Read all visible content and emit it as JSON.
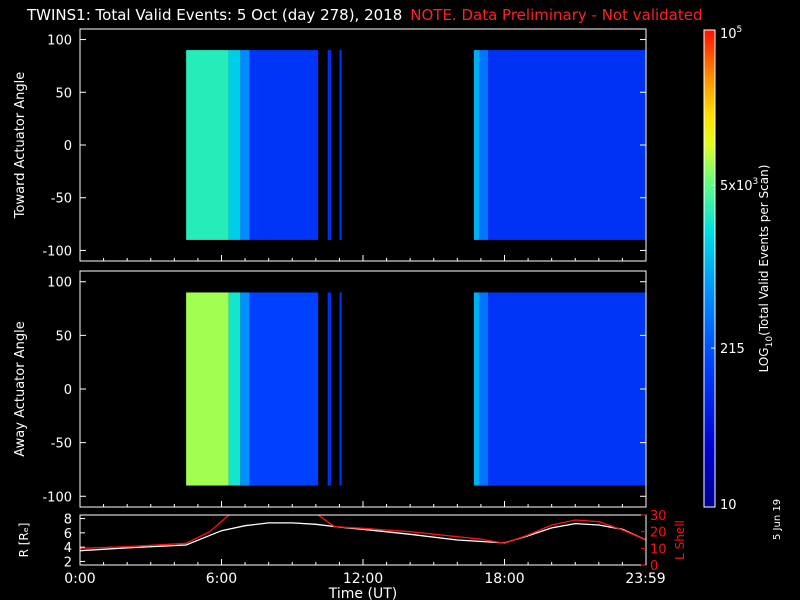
{
  "title": {
    "main": "TWINS1: Total Valid Events:  5 Oct (day 278), 2018",
    "note": "NOTE. Data Preliminary - Not validated",
    "note_color": "#ff2020"
  },
  "date_stamp": "5 Jun 19",
  "chart_data": [
    {
      "type": "heatmap",
      "name": "toward-panel",
      "ylabel": "Toward Actuator Angle",
      "ylim": [
        -110,
        110
      ],
      "yticks": [
        "100",
        "50",
        "0",
        "-50",
        "-100"
      ],
      "yticks_values": [
        100,
        50,
        0,
        -50,
        -100
      ],
      "xlim_hours": [
        0,
        24
      ],
      "angle_range": [
        -90,
        90
      ],
      "data_bands": [
        {
          "start_hr": 4.5,
          "end_hr": 6.3,
          "level": 0.62
        },
        {
          "start_hr": 6.3,
          "end_hr": 6.8,
          "level": 0.55
        },
        {
          "start_hr": 6.8,
          "end_hr": 7.2,
          "level": 0.44
        },
        {
          "start_hr": 7.2,
          "end_hr": 10.1,
          "level": 0.27
        },
        {
          "start_hr": 10.5,
          "end_hr": 10.65,
          "level": 0.25
        },
        {
          "start_hr": 11.0,
          "end_hr": 11.1,
          "level": 0.25
        },
        {
          "start_hr": 16.7,
          "end_hr": 16.95,
          "level": 0.5
        },
        {
          "start_hr": 16.95,
          "end_hr": 17.3,
          "level": 0.4
        },
        {
          "start_hr": 17.3,
          "end_hr": 24.0,
          "level": 0.26
        }
      ]
    },
    {
      "type": "heatmap",
      "name": "away-panel",
      "ylabel": "Away Actuator Angle",
      "ylim": [
        -110,
        110
      ],
      "yticks": [
        "100",
        "50",
        "0",
        "-50",
        "-100"
      ],
      "yticks_values": [
        100,
        50,
        0,
        -50,
        -100
      ],
      "xlim_hours": [
        0,
        24
      ],
      "angle_range": [
        -90,
        90
      ],
      "data_bands": [
        {
          "start_hr": 4.5,
          "end_hr": 6.3,
          "level": 0.72
        },
        {
          "start_hr": 6.3,
          "end_hr": 6.8,
          "level": 0.6
        },
        {
          "start_hr": 6.8,
          "end_hr": 7.2,
          "level": 0.45
        },
        {
          "start_hr": 7.2,
          "end_hr": 10.1,
          "level": 0.3
        },
        {
          "start_hr": 10.5,
          "end_hr": 10.65,
          "level": 0.25
        },
        {
          "start_hr": 11.0,
          "end_hr": 11.1,
          "level": 0.25
        },
        {
          "start_hr": 16.7,
          "end_hr": 16.95,
          "level": 0.5
        },
        {
          "start_hr": 16.95,
          "end_hr": 17.3,
          "level": 0.4
        },
        {
          "start_hr": 17.3,
          "end_hr": 24.0,
          "level": 0.27
        }
      ]
    },
    {
      "type": "line",
      "name": "orbit-panel",
      "xlabel": "Time (UT)",
      "xticks": [
        "0:00",
        "6:00",
        "12:00",
        "18:00",
        "23:59"
      ],
      "xticks_values": [
        0,
        6,
        12,
        18,
        23.98
      ],
      "ylabel_left": "R [Rₑ]",
      "ylim_left": [
        1.5,
        8.5
      ],
      "yticks_left": [
        "8",
        "6",
        "4",
        "2"
      ],
      "yticks_left_values": [
        8,
        6,
        4,
        2
      ],
      "ylabel_right": "L Shell",
      "ylim_right": [
        0,
        30
      ],
      "yticks_right": [
        "30",
        "20",
        "10",
        "0"
      ],
      "yticks_right_values": [
        30,
        20,
        10,
        0
      ],
      "series": [
        {
          "axis": "left",
          "color": "#ffffff",
          "x": [
            0,
            2,
            4.5,
            6,
            7,
            8,
            9,
            10,
            11,
            12,
            14,
            16,
            18,
            19,
            20,
            21,
            22,
            23,
            24
          ],
          "y": [
            3.5,
            3.9,
            4.3,
            6.3,
            7.0,
            7.4,
            7.4,
            7.2,
            6.8,
            6.5,
            5.8,
            5.0,
            4.6,
            5.6,
            6.7,
            7.3,
            7.1,
            6.5,
            5.0
          ]
        },
        {
          "axis": "right",
          "color": "#ff1010",
          "x": [
            0,
            2,
            4.5,
            5.5,
            6.4,
            10,
            10.8,
            12,
            14,
            16,
            17,
            18,
            19,
            20,
            21,
            22,
            23,
            24
          ],
          "y": [
            10,
            11,
            13,
            20,
            31,
            31,
            23,
            22,
            20,
            17,
            15.5,
            13,
            18,
            24,
            27,
            26,
            21,
            15
          ]
        }
      ]
    },
    {
      "type": "colorbar",
      "name": "colorbar",
      "label": "LOG10(Total Valid Events per Scan)",
      "scale": "log",
      "range": [
        10,
        100000
      ],
      "tick_labels": [
        "10",
        "215",
        "5x10^3",
        "10^5"
      ],
      "tick_values": [
        10,
        215,
        5000,
        100000
      ]
    }
  ]
}
